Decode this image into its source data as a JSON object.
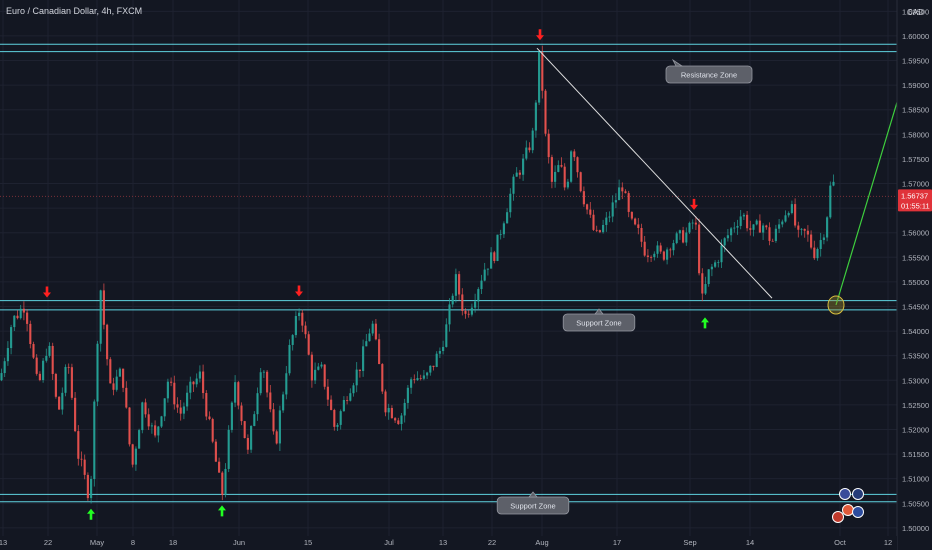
{
  "header": {
    "instrument": "Euro / Canadian Dollar, 4h, FXCM",
    "currency": "CAD"
  },
  "price_box": {
    "last_price": "1.56737",
    "countdown": "01:55:11"
  },
  "annotations": {
    "resistance": "Resistance Zone",
    "support_upper": "Support Zone",
    "support_lower": "Support Zone"
  },
  "colors": {
    "background": "#131722",
    "zone_lines": "#5fd3e0",
    "candle_up": "#26a69a",
    "candle_down": "#ef5350",
    "down_arrow": "#ff2020",
    "up_arrow": "#22ff22",
    "trendline": "#e0e0e0",
    "projection": "#3ecf3e",
    "target_circle": "#d8c040",
    "price_label": "#e0333a"
  },
  "icons": {
    "down_marker": "red-down-arrow",
    "up_marker": "green-up-arrow"
  },
  "chart_data": {
    "type": "candlestick",
    "x_tick_labels": [
      "13",
      "22",
      "May",
      "8",
      "18",
      "Jun",
      "15",
      "Jul",
      "13",
      "22",
      "Aug",
      "17",
      "Sep",
      "14",
      "Oct",
      "12"
    ],
    "y_tick_labels": [
      "1.60500",
      "1.60000",
      "1.59500",
      "1.59000",
      "1.58500",
      "1.58000",
      "1.57500",
      "1.57000",
      "1.56500",
      "1.56000",
      "1.55500",
      "1.55000",
      "1.54500",
      "1.54000",
      "1.53500",
      "1.53000",
      "1.52500",
      "1.52000",
      "1.51500",
      "1.51000",
      "1.50500",
      "1.50000"
    ],
    "ylim": [
      1.4955,
      1.6073
    ],
    "last_price": 1.56737,
    "resistance_zone": [
      1.5968,
      1.5983
    ],
    "support_zone_upper": [
      1.5443,
      1.5462
    ],
    "support_zone_lower": [
      1.5053,
      1.5068
    ],
    "trendline": {
      "from": [
        "Jul 28",
        1.5975
      ],
      "to": [
        "Sep 22",
        1.5467
      ]
    },
    "projection": {
      "from": [
        "Sep 29",
        1.5453
      ],
      "to": [
        "Oct 13",
        1.5865
      ]
    },
    "target": [
      "Sep 29",
      1.5453
    ],
    "swing_points": [
      {
        "type": "high",
        "label": "Apr 22",
        "price": 1.5452
      },
      {
        "type": "low",
        "label": "Apr 30",
        "price": 1.5055
      },
      {
        "type": "low",
        "label": "May 27",
        "price": 1.5062
      },
      {
        "type": "high",
        "label": "Jun 15",
        "price": 1.5454
      },
      {
        "type": "high",
        "label": "Jul 30",
        "price": 1.5975
      },
      {
        "type": "high",
        "label": "Sep 2",
        "price": 1.563
      },
      {
        "type": "low",
        "label": "Sep 4",
        "price": 1.5444
      }
    ],
    "path": [
      [
        0,
        1.53
      ],
      [
        12,
        1.542
      ],
      [
        25,
        1.5455
      ],
      [
        38,
        1.528
      ],
      [
        48,
        1.538
      ],
      [
        58,
        1.523
      ],
      [
        68,
        1.534
      ],
      [
        78,
        1.515
      ],
      [
        90,
        1.506
      ],
      [
        100,
        1.55
      ],
      [
        110,
        1.528
      ],
      [
        122,
        1.532
      ],
      [
        132,
        1.512
      ],
      [
        143,
        1.526
      ],
      [
        155,
        1.518
      ],
      [
        168,
        1.53
      ],
      [
        180,
        1.523
      ],
      [
        192,
        1.529
      ],
      [
        200,
        1.531
      ],
      [
        210,
        1.52
      ],
      [
        222,
        1.5065
      ],
      [
        235,
        1.53
      ],
      [
        248,
        1.515
      ],
      [
        262,
        1.535
      ],
      [
        275,
        1.516
      ],
      [
        288,
        1.535
      ],
      [
        300,
        1.545
      ],
      [
        312,
        1.531
      ],
      [
        322,
        1.532
      ],
      [
        335,
        1.52
      ],
      [
        348,
        1.528
      ],
      [
        360,
        1.533
      ],
      [
        372,
        1.542
      ],
      [
        385,
        1.525
      ],
      [
        400,
        1.522
      ],
      [
        412,
        1.531
      ],
      [
        425,
        1.53
      ],
      [
        440,
        1.536
      ],
      [
        448,
        1.542
      ],
      [
        455,
        1.551
      ],
      [
        465,
        1.543
      ],
      [
        474,
        1.547
      ],
      [
        485,
        1.553
      ],
      [
        495,
        1.556
      ],
      [
        505,
        1.564
      ],
      [
        515,
        1.571
      ],
      [
        525,
        1.575
      ],
      [
        533,
        1.58
      ],
      [
        540,
        1.5975
      ],
      [
        545,
        1.58
      ],
      [
        552,
        1.57
      ],
      [
        560,
        1.574
      ],
      [
        566,
        1.568
      ],
      [
        572,
        1.579
      ],
      [
        580,
        1.57
      ],
      [
        588,
        1.564
      ],
      [
        596,
        1.559
      ],
      [
        606,
        1.562
      ],
      [
        614,
        1.566
      ],
      [
        622,
        1.57
      ],
      [
        630,
        1.562
      ],
      [
        638,
        1.56
      ],
      [
        646,
        1.556
      ],
      [
        654,
        1.557
      ],
      [
        662,
        1.555
      ],
      [
        670,
        1.558
      ],
      [
        680,
        1.559
      ],
      [
        688,
        1.56
      ],
      [
        695,
        1.563
      ],
      [
        702,
        1.546
      ],
      [
        709,
        1.552
      ],
      [
        716,
        1.554
      ],
      [
        724,
        1.558
      ],
      [
        732,
        1.561
      ],
      [
        742,
        1.564
      ],
      [
        752,
        1.56
      ],
      [
        762,
        1.562
      ],
      [
        772,
        1.558
      ],
      [
        782,
        1.563
      ],
      [
        790,
        1.566
      ],
      [
        798,
        1.559
      ],
      [
        806,
        1.56
      ],
      [
        814,
        1.556
      ],
      [
        820,
        1.558
      ],
      [
        826,
        1.562
      ],
      [
        830,
        1.569
      ],
      [
        834,
        1.57
      ],
      [
        836,
        1.5674
      ]
    ]
  }
}
